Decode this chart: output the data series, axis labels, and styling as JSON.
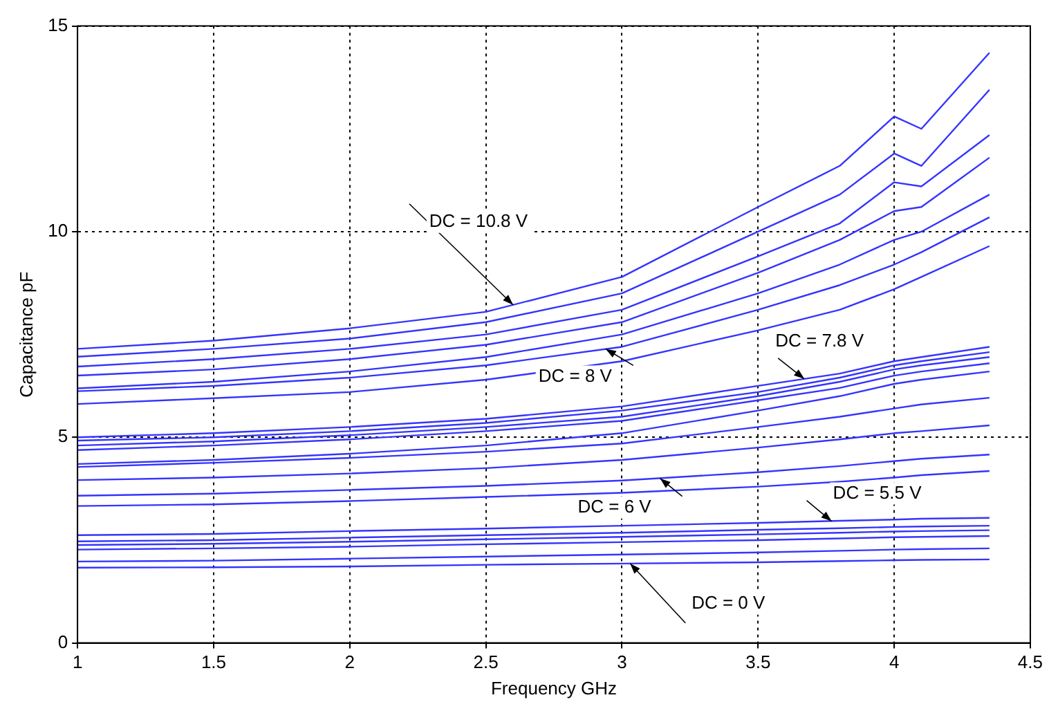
{
  "chart_data": {
    "type": "line",
    "xlabel": "Frequency GHz",
    "ylabel": "Capacitance pF",
    "x": [
      1,
      1.5,
      2,
      2.5,
      3,
      3.5,
      3.8,
      4.0,
      4.1,
      4.35
    ],
    "xlim": [
      1,
      4.5
    ],
    "xticks": [
      1,
      1.5,
      2,
      2.5,
      3,
      3.5,
      4,
      4.5
    ],
    "ylim": [
      0,
      15
    ],
    "yticks": [
      0,
      5,
      10,
      15
    ],
    "grid": true,
    "legend": false,
    "marker": "none",
    "line_style": "solid",
    "series": [
      {
        "color": "#3434ff",
        "values": [
          7.15,
          7.35,
          7.65,
          8.05,
          8.9,
          10.6,
          11.6,
          12.8,
          12.5,
          14.35
        ]
      },
      {
        "color": "#3434ff",
        "values": [
          6.96,
          7.15,
          7.4,
          7.8,
          8.5,
          10.0,
          10.9,
          11.9,
          11.6,
          13.45
        ]
      },
      {
        "color": "#3434ff",
        "values": [
          6.72,
          6.9,
          7.15,
          7.5,
          8.1,
          9.4,
          10.2,
          11.2,
          11.1,
          12.35
        ]
      },
      {
        "color": "#3434ff",
        "values": [
          6.5,
          6.65,
          6.9,
          7.25,
          7.8,
          9.0,
          9.8,
          10.5,
          10.6,
          11.8
        ]
      },
      {
        "color": "#3434ff",
        "values": [
          6.19,
          6.35,
          6.6,
          6.95,
          7.5,
          8.5,
          9.2,
          9.8,
          10.0,
          10.9
        ]
      },
      {
        "color": "#3434ff",
        "values": [
          6.12,
          6.25,
          6.45,
          6.75,
          7.2,
          8.1,
          8.7,
          9.2,
          9.5,
          10.35
        ]
      },
      {
        "color": "#3434ff",
        "values": [
          5.81,
          5.95,
          6.1,
          6.4,
          6.85,
          7.6,
          8.1,
          8.6,
          8.9,
          9.65
        ]
      },
      {
        "color": "#3434ff",
        "values": [
          5.0,
          5.1,
          5.25,
          5.45,
          5.75,
          6.25,
          6.55,
          6.85,
          6.95,
          7.2
        ]
      },
      {
        "color": "#3434ff",
        "values": [
          4.92,
          5.0,
          5.15,
          5.35,
          5.65,
          6.1,
          6.45,
          6.75,
          6.85,
          7.07
        ]
      },
      {
        "color": "#3434ff",
        "values": [
          4.8,
          4.9,
          5.05,
          5.25,
          5.5,
          6.0,
          6.35,
          6.65,
          6.75,
          6.95
        ]
      },
      {
        "color": "#3434ff",
        "values": [
          4.69,
          4.8,
          4.95,
          5.15,
          5.4,
          5.9,
          6.2,
          6.5,
          6.6,
          6.8
        ]
      },
      {
        "color": "#3434ff",
        "values": [
          4.35,
          4.45,
          4.6,
          4.8,
          5.1,
          5.65,
          6.0,
          6.3,
          6.4,
          6.6
        ]
      },
      {
        "color": "#3434ff",
        "values": [
          4.28,
          4.38,
          4.5,
          4.65,
          4.85,
          5.25,
          5.5,
          5.7,
          5.8,
          5.96
        ]
      },
      {
        "color": "#3434ff",
        "values": [
          3.96,
          4.02,
          4.12,
          4.25,
          4.45,
          4.75,
          4.95,
          5.1,
          5.15,
          5.29
        ]
      },
      {
        "color": "#3434ff",
        "values": [
          3.58,
          3.63,
          3.72,
          3.82,
          3.95,
          4.15,
          4.3,
          4.42,
          4.48,
          4.58
        ]
      },
      {
        "color": "#3434ff",
        "values": [
          3.33,
          3.37,
          3.45,
          3.55,
          3.65,
          3.8,
          3.92,
          4.02,
          4.08,
          4.18
        ]
      },
      {
        "color": "#3434ff",
        "values": [
          2.62,
          2.65,
          2.72,
          2.78,
          2.85,
          2.92,
          2.97,
          3.0,
          3.02,
          3.04
        ]
      },
      {
        "color": "#3434ff",
        "values": [
          2.47,
          2.5,
          2.56,
          2.62,
          2.68,
          2.75,
          2.79,
          2.82,
          2.83,
          2.85
        ]
      },
      {
        "color": "#3434ff",
        "values": [
          2.38,
          2.41,
          2.46,
          2.52,
          2.58,
          2.64,
          2.68,
          2.71,
          2.72,
          2.74
        ]
      },
      {
        "color": "#3434ff",
        "values": [
          2.27,
          2.3,
          2.34,
          2.4,
          2.45,
          2.5,
          2.54,
          2.57,
          2.58,
          2.6
        ]
      },
      {
        "color": "#3434ff",
        "values": [
          1.98,
          2.0,
          2.05,
          2.1,
          2.15,
          2.2,
          2.24,
          2.27,
          2.28,
          2.3
        ]
      },
      {
        "color": "#3434ff",
        "values": [
          1.83,
          1.84,
          1.86,
          1.9,
          1.93,
          1.96,
          1.99,
          2.01,
          2.02,
          2.03
        ]
      }
    ],
    "annotations": [
      {
        "text": "DC = 10.8 V",
        "x": 2.6,
        "y": 8.22
      },
      {
        "text": "DC = 8 V",
        "x": 2.94,
        "y": 7.15
      },
      {
        "text": "DC = 7.8 V",
        "x": 3.67,
        "y": 6.42
      },
      {
        "text": "DC = 6 V",
        "x": 3.14,
        "y": 4.0
      },
      {
        "text": "DC = 5.5 V",
        "x": 3.77,
        "y": 2.96
      },
      {
        "text": "DC = 0 V",
        "x": 3.03,
        "y": 1.93
      }
    ]
  }
}
